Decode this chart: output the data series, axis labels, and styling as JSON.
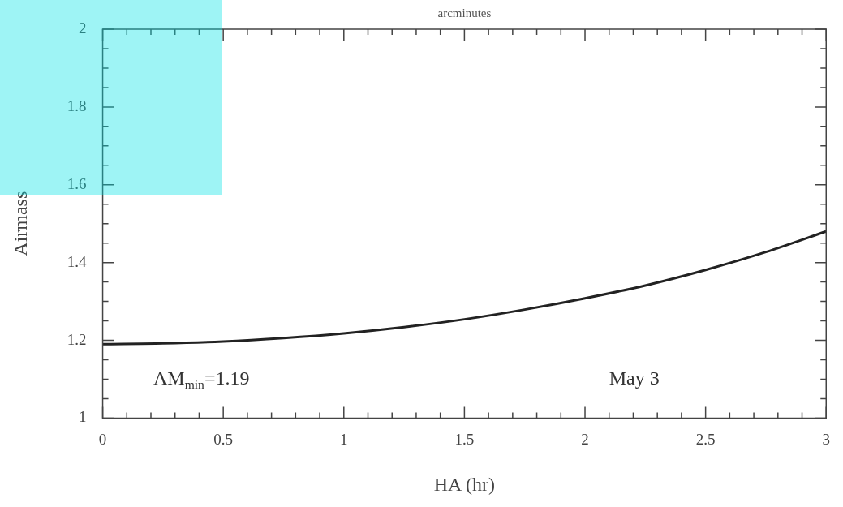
{
  "chart_data": {
    "type": "line",
    "xlabel": "HA (hr)",
    "ylabel": "Airmass",
    "x2label": "arcminutes",
    "x": [
      0,
      0.25,
      0.5,
      0.75,
      1,
      1.25,
      1.5,
      1.75,
      2,
      2.25,
      2.5,
      2.75,
      3
    ],
    "series": [
      {
        "color": "#222222",
        "values": [
          1.19,
          1.192,
          1.197,
          1.206,
          1.218,
          1.234,
          1.254,
          1.279,
          1.308,
          1.341,
          1.381,
          1.427,
          1.48
        ]
      }
    ],
    "xlim": [
      0,
      3
    ],
    "xticks": [
      0,
      {
        "value": 0.1,
        "label": null
      },
      {
        "value": 0.2,
        "label": null
      },
      {
        "value": 0.3,
        "label": null
      },
      {
        "value": 0.4,
        "label": null
      },
      0.5,
      {
        "value": 0.6,
        "label": null
      },
      {
        "value": 0.7,
        "label": null
      },
      {
        "value": 0.8,
        "label": null
      },
      {
        "value": 0.9,
        "label": null
      },
      1,
      {
        "value": 1.1,
        "label": null
      },
      {
        "value": 1.2,
        "label": null
      },
      {
        "value": 1.3,
        "label": null
      },
      {
        "value": 1.4,
        "label": null
      },
      1.5,
      {
        "value": 1.6,
        "label": null
      },
      {
        "value": 1.7,
        "label": null
      },
      {
        "value": 1.8,
        "label": null
      },
      {
        "value": 1.9,
        "label": null
      },
      2,
      {
        "value": 2.1,
        "label": null
      },
      {
        "value": 2.2,
        "label": null
      },
      {
        "value": 2.3,
        "label": null
      },
      {
        "value": 2.4,
        "label": null
      },
      2.5,
      {
        "value": 2.6,
        "label": null
      },
      {
        "value": 2.7,
        "label": null
      },
      {
        "value": 2.8,
        "label": null
      },
      {
        "value": 2.9,
        "label": null
      },
      3
    ],
    "ylim": [
      1,
      2
    ],
    "yticks": [
      1,
      {
        "value": 1.05,
        "label": null
      },
      {
        "value": 1.1,
        "label": null
      },
      {
        "value": 1.15,
        "label": null
      },
      1.2,
      {
        "value": 1.25,
        "label": null
      },
      {
        "value": 1.3,
        "label": null
      },
      {
        "value": 1.35,
        "label": null
      },
      1.4,
      {
        "value": 1.45,
        "label": null
      },
      {
        "value": 1.5,
        "label": null
      },
      {
        "value": 1.55,
        "label": null
      },
      1.6,
      {
        "value": 1.65,
        "label": null
      },
      {
        "value": 1.7,
        "label": null
      },
      {
        "value": 1.75,
        "label": null
      },
      1.8,
      {
        "value": 1.85,
        "label": null
      },
      {
        "value": 1.9,
        "label": null
      },
      {
        "value": 1.95,
        "label": null
      },
      2
    ],
    "annotations": [
      "AM$_{min}$=1.19",
      "May 3"
    ],
    "grid": false,
    "legend": false,
    "marker": "none",
    "line_style": "solid"
  }
}
